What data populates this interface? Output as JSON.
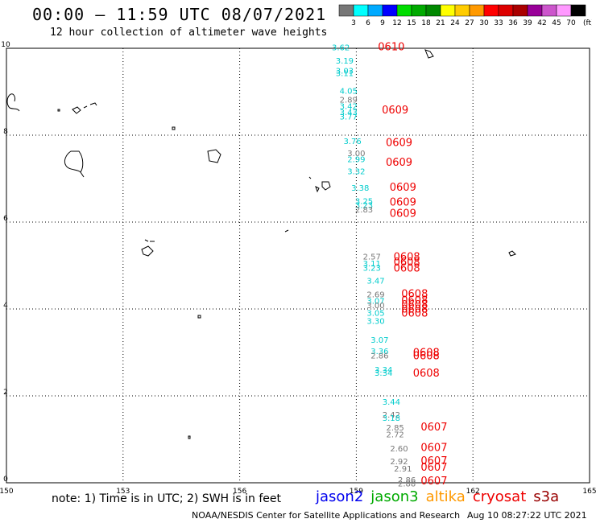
{
  "title": "00:00 — 11:59 UTC 08/07/2021",
  "subtitle": "12 hour collection of altimeter wave heights",
  "colorbar": {
    "colors": [
      "#777777",
      "#00ffff",
      "#00aaff",
      "#0000ff",
      "#00dd00",
      "#00aa00",
      "#008800",
      "#ffff00",
      "#ffcc00",
      "#ff9900",
      "#ff0000",
      "#dd0000",
      "#aa0000",
      "#990099",
      "#cc55cc",
      "#ff99ff",
      "#000000"
    ],
    "labels": [
      "3",
      "6",
      "9",
      "12",
      "15",
      "18",
      "21",
      "24",
      "27",
      "30",
      "33",
      "36",
      "39",
      "42",
      "45",
      "70"
    ],
    "unit": "(ft)"
  },
  "map": {
    "lon_range": [
      150,
      165
    ],
    "lat_range": [
      0,
      10
    ],
    "x_ticks": [
      "150",
      "153",
      "156",
      "159",
      "162",
      "165"
    ],
    "y_ticks": [
      "0",
      "2",
      "4",
      "6",
      "8",
      "10"
    ],
    "observations": [
      {
        "lon": 158.6,
        "lat": 9.95,
        "swh": "3.62",
        "color": "#00cccc"
      },
      {
        "lon": 158.7,
        "lat": 9.65,
        "swh": "3.19",
        "color": "#00cccc"
      },
      {
        "lon": 158.7,
        "lat": 9.42,
        "swh": "3.03",
        "color": "#00cccc"
      },
      {
        "lon": 158.7,
        "lat": 9.36,
        "swh": "3.11",
        "color": "#00cccc"
      },
      {
        "lon": 158.8,
        "lat": 8.95,
        "swh": "4.05",
        "color": "#00cccc"
      },
      {
        "lon": 158.8,
        "lat": 8.75,
        "swh": "2.89",
        "color": "#777777"
      },
      {
        "lon": 158.8,
        "lat": 8.6,
        "swh": "3.42",
        "color": "#00cccc"
      },
      {
        "lon": 158.8,
        "lat": 8.46,
        "swh": "3.43",
        "color": "#00cccc"
      },
      {
        "lon": 158.8,
        "lat": 8.36,
        "swh": "3.77",
        "color": "#00cccc"
      },
      {
        "lon": 158.9,
        "lat": 7.8,
        "swh": "3.76",
        "color": "#00cccc"
      },
      {
        "lon": 159.0,
        "lat": 7.52,
        "swh": "3.00",
        "color": "#777777"
      },
      {
        "lon": 159.0,
        "lat": 7.38,
        "swh": "2.99",
        "color": "#00cccc"
      },
      {
        "lon": 159.0,
        "lat": 7.1,
        "swh": "3.32",
        "color": "#00cccc"
      },
      {
        "lon": 159.1,
        "lat": 6.72,
        "swh": "3.38",
        "color": "#00cccc"
      },
      {
        "lon": 159.2,
        "lat": 6.42,
        "swh": "3.25",
        "color": "#00cccc"
      },
      {
        "lon": 159.2,
        "lat": 6.32,
        "swh": "3.23",
        "color": "#00cccc"
      },
      {
        "lon": 159.2,
        "lat": 6.22,
        "swh": "2.83",
        "color": "#777777"
      },
      {
        "lon": 159.4,
        "lat": 5.14,
        "swh": "2.57",
        "color": "#777777"
      },
      {
        "lon": 159.4,
        "lat": 4.98,
        "swh": "3.11",
        "color": "#00cccc"
      },
      {
        "lon": 159.4,
        "lat": 4.88,
        "swh": "3.23",
        "color": "#00cccc"
      },
      {
        "lon": 159.5,
        "lat": 4.58,
        "swh": "3.47",
        "color": "#00cccc"
      },
      {
        "lon": 159.5,
        "lat": 4.27,
        "swh": "2.69",
        "color": "#777777"
      },
      {
        "lon": 159.5,
        "lat": 4.12,
        "swh": "3.07",
        "color": "#00cccc"
      },
      {
        "lon": 159.5,
        "lat": 4.02,
        "swh": "3.00",
        "color": "#777777"
      },
      {
        "lon": 159.5,
        "lat": 3.84,
        "swh": "3.05",
        "color": "#00cccc"
      },
      {
        "lon": 159.5,
        "lat": 3.66,
        "swh": "3.30",
        "color": "#00cccc"
      },
      {
        "lon": 159.6,
        "lat": 3.22,
        "swh": "3.07",
        "color": "#00cccc"
      },
      {
        "lon": 159.6,
        "lat": 2.96,
        "swh": "3.36",
        "color": "#00cccc"
      },
      {
        "lon": 159.6,
        "lat": 2.86,
        "swh": "2.86",
        "color": "#777777"
      },
      {
        "lon": 159.7,
        "lat": 2.54,
        "swh": "3.34",
        "color": "#00cccc"
      },
      {
        "lon": 159.7,
        "lat": 2.46,
        "swh": "3.34",
        "color": "#00cccc"
      },
      {
        "lon": 159.9,
        "lat": 1.8,
        "swh": "3.44",
        "color": "#00cccc"
      },
      {
        "lon": 159.9,
        "lat": 1.5,
        "swh": "2.42",
        "color": "#777777"
      },
      {
        "lon": 159.9,
        "lat": 1.43,
        "swh": "3.18",
        "color": "#00cccc"
      },
      {
        "lon": 160.0,
        "lat": 1.2,
        "swh": "2.85",
        "color": "#777777"
      },
      {
        "lon": 160.0,
        "lat": 1.05,
        "swh": "2.72",
        "color": "#777777"
      },
      {
        "lon": 160.1,
        "lat": 0.72,
        "swh": "2.60",
        "color": "#777777"
      },
      {
        "lon": 160.1,
        "lat": 0.43,
        "swh": "2.92",
        "color": "#777777"
      },
      {
        "lon": 160.2,
        "lat": 0.26,
        "swh": "2.91",
        "color": "#777777"
      },
      {
        "lon": 160.3,
        "lat": 0.0,
        "swh": "2.86",
        "color": "#777777"
      },
      {
        "lon": 160.3,
        "lat": -0.08,
        "swh": "2.88",
        "color": "#777777"
      }
    ],
    "date_labels": [
      {
        "lon": 159.9,
        "lat": 9.95,
        "text": "0610"
      },
      {
        "lon": 160.0,
        "lat": 8.5,
        "text": "0609"
      },
      {
        "lon": 160.1,
        "lat": 7.75,
        "text": "0609"
      },
      {
        "lon": 160.1,
        "lat": 7.3,
        "text": "0609"
      },
      {
        "lon": 160.2,
        "lat": 6.72,
        "text": "0609"
      },
      {
        "lon": 160.2,
        "lat": 6.38,
        "text": "0609"
      },
      {
        "lon": 160.2,
        "lat": 6.12,
        "text": "0609"
      },
      {
        "lon": 160.3,
        "lat": 5.12,
        "text": "0608"
      },
      {
        "lon": 160.3,
        "lat": 5.0,
        "text": "0608"
      },
      {
        "lon": 160.3,
        "lat": 4.86,
        "text": "0608"
      },
      {
        "lon": 160.5,
        "lat": 4.27,
        "text": "0608"
      },
      {
        "lon": 160.5,
        "lat": 4.12,
        "text": "0608"
      },
      {
        "lon": 160.5,
        "lat": 4.02,
        "text": "0608"
      },
      {
        "lon": 160.5,
        "lat": 3.92,
        "text": "0608"
      },
      {
        "lon": 160.5,
        "lat": 3.82,
        "text": "0608"
      },
      {
        "lon": 160.8,
        "lat": 2.92,
        "text": "0608"
      },
      {
        "lon": 160.8,
        "lat": 2.84,
        "text": "0608"
      },
      {
        "lon": 160.8,
        "lat": 2.44,
        "text": "0608"
      },
      {
        "lon": 161.0,
        "lat": 1.2,
        "text": "0607"
      },
      {
        "lon": 161.0,
        "lat": 0.73,
        "text": "0607"
      },
      {
        "lon": 161.0,
        "lat": 0.43,
        "text": "0607"
      },
      {
        "lon": 161.0,
        "lat": 0.28,
        "text": "0607"
      },
      {
        "lon": 161.0,
        "lat": -0.04,
        "text": "0607"
      }
    ]
  },
  "note": "note: 1) Time is in UTC; 2) SWH is in feet",
  "legend": [
    {
      "name": "jason2",
      "color": "#0000ee"
    },
    {
      "name": "jason3",
      "color": "#00aa00"
    },
    {
      "name": "altika",
      "color": "#ff9900"
    },
    {
      "name": "cryosat",
      "color": "#ee0000"
    },
    {
      "name": "s3a",
      "color": "#990000"
    }
  ],
  "credit": "NOAA/NESDIS Center for Satellite Applications and Research",
  "timestamp": "Aug 10 08:27:22 UTC 2021"
}
